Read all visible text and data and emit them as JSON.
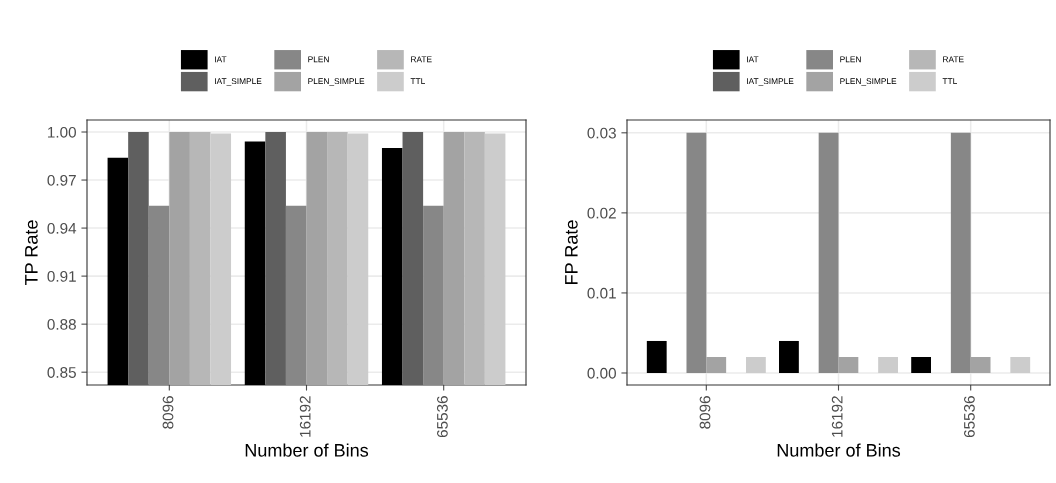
{
  "chart_data": [
    {
      "type": "bar",
      "xlabel": "Number of Bins",
      "ylabel": "TP Rate",
      "categories": [
        "8096",
        "16192",
        "65536"
      ],
      "ylim": [
        0.842,
        1.0075
      ],
      "yticks": [
        0.85,
        0.88,
        0.91,
        0.94,
        0.97,
        {
          "value": 1.0,
          "label": "1.00"
        }
      ],
      "grid": true,
      "legend": "top",
      "series": [
        {
          "name": "IAT",
          "color": "#000000",
          "values": [
            0.984,
            0.994,
            0.99
          ]
        },
        {
          "name": "IAT_SIMPLE",
          "color": "#5f5f5f",
          "values": [
            1.0,
            1.0,
            1.0
          ]
        },
        {
          "name": "PLEN",
          "color": "#878787",
          "values": [
            0.954,
            0.954,
            0.954
          ]
        },
        {
          "name": "PLEN_SIMPLE",
          "color": "#a3a3a3",
          "values": [
            1.0,
            1.0,
            1.0
          ]
        },
        {
          "name": "RATE",
          "color": "#b7b7b7",
          "values": [
            1.0,
            1.0,
            1.0
          ]
        },
        {
          "name": "TTL",
          "color": "#cccccc",
          "values": [
            0.999,
            0.999,
            0.999
          ]
        }
      ]
    },
    {
      "type": "bar",
      "xlabel": "Number of Bins",
      "ylabel": "FP Rate",
      "categories": [
        "8096",
        "16192",
        "65536"
      ],
      "ylim": [
        -0.0015,
        0.0316
      ],
      "yticks": [
        {
          "value": 0,
          "label": "0.00"
        },
        {
          "value": 0.01,
          "label": "0.01"
        },
        {
          "value": 0.02,
          "label": "0.02"
        },
        {
          "value": 0.03,
          "label": "0.03"
        }
      ],
      "grid": true,
      "legend": "top",
      "series": [
        {
          "name": "IAT",
          "color": "#000000",
          "values": [
            0.004,
            0.004,
            0.002
          ]
        },
        {
          "name": "IAT_SIMPLE",
          "color": "#5f5f5f",
          "values": [
            0,
            0,
            0
          ]
        },
        {
          "name": "PLEN",
          "color": "#878787",
          "values": [
            0.03,
            0.03,
            0.03
          ]
        },
        {
          "name": "PLEN_SIMPLE",
          "color": "#a3a3a3",
          "values": [
            0.002,
            0.002,
            0.002
          ]
        },
        {
          "name": "RATE",
          "color": "#b7b7b7",
          "values": [
            0,
            0,
            0
          ]
        },
        {
          "name": "TTL",
          "color": "#cccccc",
          "values": [
            0.002,
            0.002,
            0.002
          ]
        }
      ]
    }
  ]
}
